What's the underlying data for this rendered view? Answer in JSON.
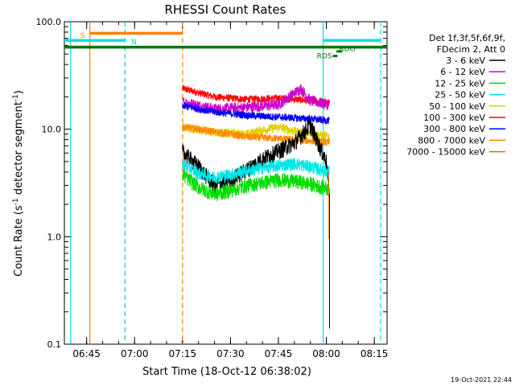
{
  "chart_data": {
    "type": "line",
    "title": "RHESSI Count Rates",
    "xlabel": "Start Time (18-Oct-12 06:38:02)",
    "ylabel_main": "Count Rate (s",
    "ylabel_sup1": "-1",
    "ylabel_mid": " detector segment",
    "ylabel_sup2": "-1",
    "ylabel_end": ")",
    "y_scale": "log",
    "ylim": [
      0.1,
      100
    ],
    "xlim": [
      "06:38:02",
      "08:19:00"
    ],
    "x_ticks": [
      "06:45",
      "07:00",
      "07:15",
      "07:30",
      "07:45",
      "08:00",
      "08:15"
    ],
    "y_ticks": [
      "100.0",
      "10.0",
      "1.0",
      "0.1"
    ],
    "legend_header": [
      "Det 1f,3f,5f,6f,9f,",
      "FDecim 2, Att 0"
    ],
    "legend_position": "right",
    "series": [
      {
        "name": "3 - 6 keV",
        "color": "#000000",
        "values": [
          [
            "07:15",
            6.2
          ],
          [
            "07:20",
            4.5
          ],
          [
            "07:25",
            3.0
          ],
          [
            "07:30",
            3.4
          ],
          [
            "07:35",
            4.2
          ],
          [
            "07:40",
            5.3
          ],
          [
            "07:45",
            6.3
          ],
          [
            "07:50",
            7.5
          ],
          [
            "07:55",
            11.0
          ],
          [
            "08:00",
            5.0
          ],
          [
            "08:01",
            2.5
          ]
        ]
      },
      {
        "name": "6 - 12 keV",
        "color": "#cc00cc",
        "values": [
          [
            "07:15",
            18.0
          ],
          [
            "07:25",
            15.5
          ],
          [
            "07:35",
            16.0
          ],
          [
            "07:45",
            17.0
          ],
          [
            "07:52",
            24.0
          ],
          [
            "07:55",
            18.5
          ],
          [
            "08:01",
            17.0
          ]
        ]
      },
      {
        "name": "12 - 25 keV",
        "color": "#00dd00",
        "values": [
          [
            "07:15",
            3.8
          ],
          [
            "07:20",
            2.9
          ],
          [
            "07:25",
            2.5
          ],
          [
            "07:30",
            2.7
          ],
          [
            "07:35",
            3.0
          ],
          [
            "07:40",
            3.2
          ],
          [
            "07:45",
            3.4
          ],
          [
            "07:50",
            3.3
          ],
          [
            "07:55",
            3.1
          ],
          [
            "08:01",
            2.8
          ]
        ]
      },
      {
        "name": "25 - 50 keV",
        "color": "#00e5e5",
        "values": [
          [
            "07:15",
            4.8
          ],
          [
            "07:20",
            3.9
          ],
          [
            "07:25",
            3.6
          ],
          [
            "07:30",
            3.8
          ],
          [
            "07:35",
            4.1
          ],
          [
            "07:40",
            4.4
          ],
          [
            "07:45",
            4.6
          ],
          [
            "07:50",
            4.8
          ],
          [
            "07:55",
            4.5
          ],
          [
            "08:01",
            4.0
          ]
        ]
      },
      {
        "name": "50 - 100 keV",
        "color": "#e0d000",
        "values": [
          [
            "07:15",
            10.5
          ],
          [
            "07:25",
            9.4
          ],
          [
            "07:35",
            9.0
          ],
          [
            "07:40",
            9.8
          ],
          [
            "07:45",
            10.5
          ],
          [
            "07:50",
            9.6
          ],
          [
            "07:55",
            9.0
          ],
          [
            "08:01",
            8.6
          ]
        ]
      },
      {
        "name": "100 - 300 keV",
        "color": "#ff0000",
        "values": [
          [
            "07:15",
            24.0
          ],
          [
            "07:25",
            20.0
          ],
          [
            "07:35",
            19.0
          ],
          [
            "07:45",
            19.5
          ],
          [
            "07:55",
            18.5
          ],
          [
            "08:01",
            17.5
          ]
        ]
      },
      {
        "name": "300 - 800 keV",
        "color": "#0000ee",
        "values": [
          [
            "07:15",
            16.5
          ],
          [
            "07:25",
            14.5
          ],
          [
            "07:35",
            13.5
          ],
          [
            "07:45",
            13.0
          ],
          [
            "07:55",
            12.5
          ],
          [
            "08:01",
            12.0
          ]
        ]
      },
      {
        "name": "800 - 7000 keV",
        "color": "#ff8800",
        "values": [
          [
            "07:15",
            10.5
          ],
          [
            "07:25",
            9.5
          ],
          [
            "07:35",
            8.5
          ],
          [
            "07:45",
            8.2
          ],
          [
            "07:55",
            7.8
          ],
          [
            "08:01",
            7.5
          ]
        ]
      },
      {
        "name": "7000 - 15000 keV",
        "color": "#cc7700",
        "values": []
      }
    ],
    "annotations": [
      {
        "text": "S",
        "color": "#ff8000"
      },
      {
        "text": "N",
        "color": "#00cccc"
      },
      {
        "text": "RDS",
        "color": "#007700"
      },
      {
        "text": "RDO",
        "color": "#007700"
      }
    ],
    "time_markers": [
      {
        "time": "06:40:00",
        "color": "#00e5e5",
        "style": "solid"
      },
      {
        "time": "06:46:00",
        "color": "#ff8000",
        "style": "solid"
      },
      {
        "time": "06:57:00",
        "color": "#00cccc",
        "style": "dashed"
      },
      {
        "time": "07:15:00",
        "color": "#ff8000",
        "style": "dashed"
      },
      {
        "time": "07:59:00",
        "color": "#00e5e5",
        "style": "solid"
      },
      {
        "time": "08:17:00",
        "color": "#00e5e5",
        "style": "dashed"
      }
    ],
    "timestamp": "19-Oct-2021 22:44"
  }
}
